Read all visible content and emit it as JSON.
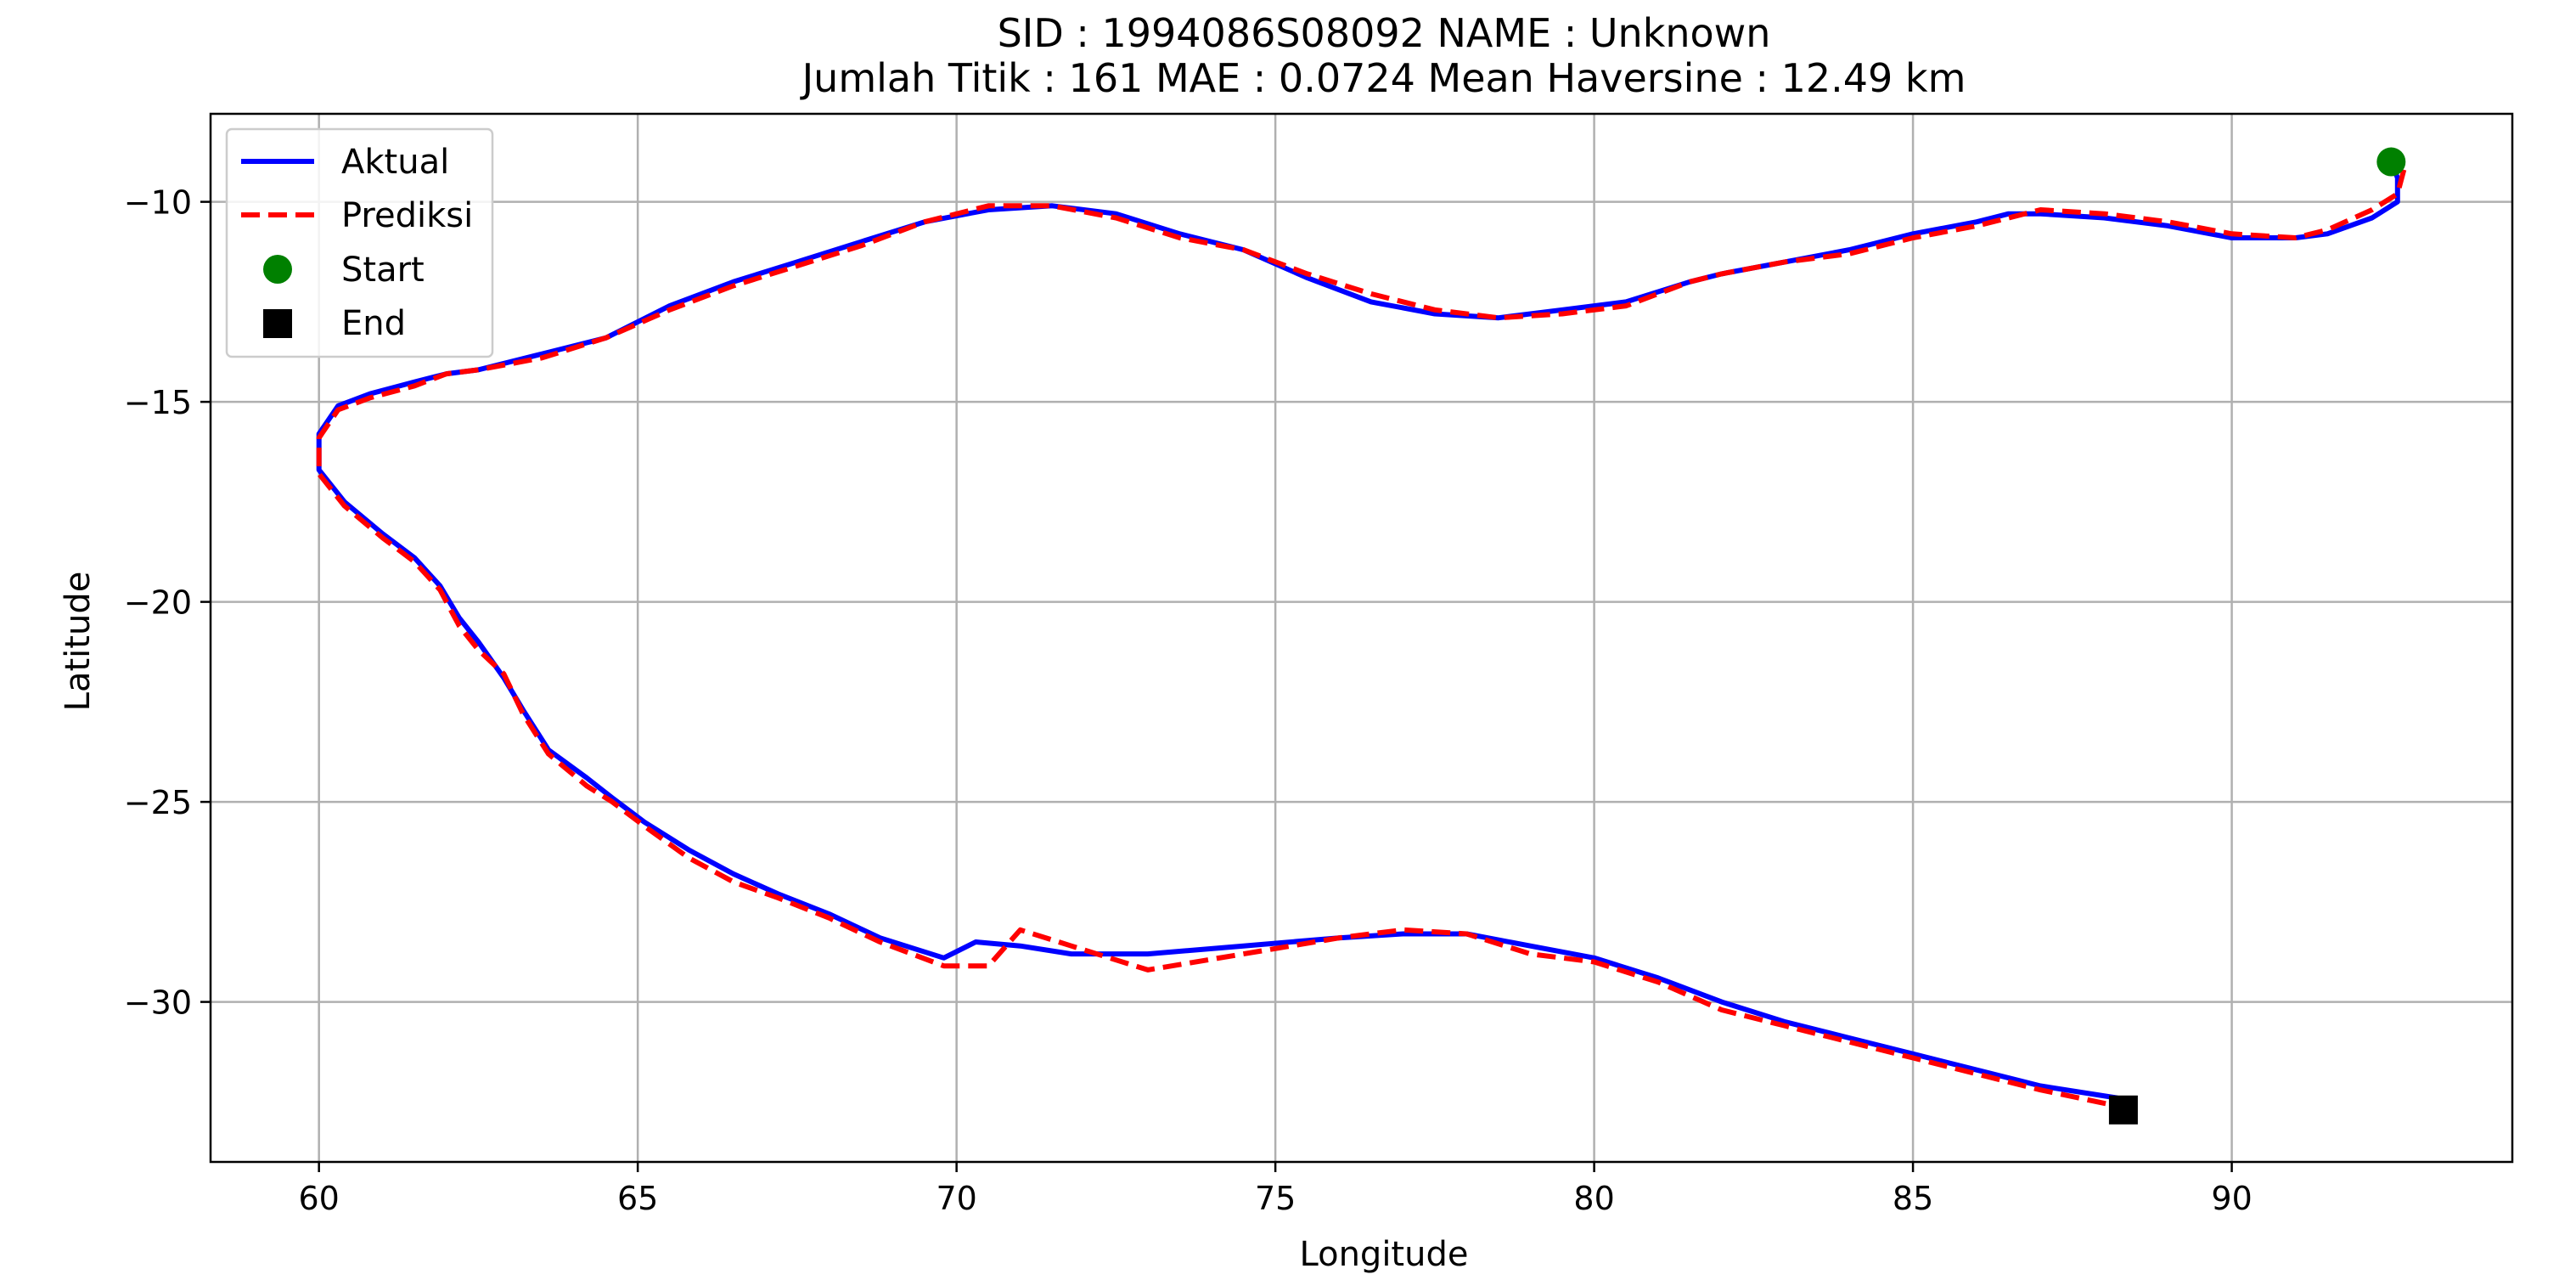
{
  "chart_data": {
    "type": "line",
    "title_line1": "SID : 1994086S08092    NAME : Unknown",
    "title_line2": "Jumlah Titik : 161    MAE : 0.0724    Mean Haversine : 12.49 km",
    "xlabel": "Longitude",
    "ylabel": "Latitude",
    "xlim": [
      58.3,
      94.4
    ],
    "ylim": [
      -34.0,
      -7.8
    ],
    "xticks": [
      60,
      65,
      70,
      75,
      80,
      85,
      90
    ],
    "yticks": [
      -10,
      -15,
      -20,
      -25,
      -30
    ],
    "xtick_labels": [
      "60",
      "65",
      "70",
      "75",
      "80",
      "85",
      "90"
    ],
    "ytick_labels": [
      "−10",
      "−15",
      "−20",
      "−25",
      "−30"
    ],
    "grid": true,
    "legend_position": "top-left",
    "series": [
      {
        "name": "Aktual",
        "color": "#0000ff",
        "style": "solid",
        "points": [
          [
            92.5,
            -9.0
          ],
          [
            92.6,
            -9.4
          ],
          [
            92.6,
            -10.0
          ],
          [
            92.2,
            -10.4
          ],
          [
            91.5,
            -10.8
          ],
          [
            91.0,
            -10.9
          ],
          [
            90.0,
            -10.9
          ],
          [
            89.0,
            -10.6
          ],
          [
            88.0,
            -10.4
          ],
          [
            87.0,
            -10.3
          ],
          [
            86.5,
            -10.3
          ],
          [
            86.0,
            -10.5
          ],
          [
            85.0,
            -10.8
          ],
          [
            84.0,
            -11.2
          ],
          [
            83.0,
            -11.5
          ],
          [
            82.0,
            -11.8
          ],
          [
            81.5,
            -12.0
          ],
          [
            80.5,
            -12.5
          ],
          [
            79.5,
            -12.7
          ],
          [
            78.5,
            -12.9
          ],
          [
            77.5,
            -12.8
          ],
          [
            76.5,
            -12.5
          ],
          [
            75.5,
            -11.9
          ],
          [
            74.5,
            -11.2
          ],
          [
            73.5,
            -10.8
          ],
          [
            72.5,
            -10.3
          ],
          [
            71.5,
            -10.1
          ],
          [
            70.5,
            -10.2
          ],
          [
            69.5,
            -10.5
          ],
          [
            68.5,
            -11.0
          ],
          [
            67.5,
            -11.5
          ],
          [
            66.5,
            -12.0
          ],
          [
            65.5,
            -12.6
          ],
          [
            64.5,
            -13.4
          ],
          [
            63.5,
            -13.8
          ],
          [
            62.5,
            -14.2
          ],
          [
            62.0,
            -14.3
          ],
          [
            61.5,
            -14.5
          ],
          [
            60.8,
            -14.8
          ],
          [
            60.3,
            -15.1
          ],
          [
            60.0,
            -15.8
          ],
          [
            60.0,
            -16.7
          ],
          [
            60.4,
            -17.5
          ],
          [
            61.0,
            -18.3
          ],
          [
            61.5,
            -18.9
          ],
          [
            61.9,
            -19.6
          ],
          [
            62.2,
            -20.4
          ],
          [
            62.5,
            -21.0
          ],
          [
            62.9,
            -21.9
          ],
          [
            63.2,
            -22.7
          ],
          [
            63.6,
            -23.7
          ],
          [
            64.2,
            -24.4
          ],
          [
            64.6,
            -24.9
          ],
          [
            65.1,
            -25.5
          ],
          [
            65.8,
            -26.2
          ],
          [
            66.5,
            -26.8
          ],
          [
            67.2,
            -27.3
          ],
          [
            68.0,
            -27.8
          ],
          [
            68.8,
            -28.4
          ],
          [
            69.8,
            -28.9
          ],
          [
            70.3,
            -28.5
          ],
          [
            71.0,
            -28.6
          ],
          [
            71.8,
            -28.8
          ],
          [
            73.0,
            -28.8
          ],
          [
            74.5,
            -28.6
          ],
          [
            76.0,
            -28.4
          ],
          [
            77.0,
            -28.3
          ],
          [
            78.0,
            -28.3
          ],
          [
            79.0,
            -28.6
          ],
          [
            80.0,
            -28.9
          ],
          [
            81.0,
            -29.4
          ],
          [
            82.0,
            -30.0
          ],
          [
            83.0,
            -30.5
          ],
          [
            84.0,
            -30.9
          ],
          [
            85.0,
            -31.3
          ],
          [
            86.0,
            -31.7
          ],
          [
            87.0,
            -32.1
          ],
          [
            88.2,
            -32.4
          ]
        ]
      },
      {
        "name": "Prediksi",
        "color": "#ff0000",
        "style": "dashed",
        "points": [
          [
            92.7,
            -9.2
          ],
          [
            92.6,
            -9.8
          ],
          [
            92.2,
            -10.2
          ],
          [
            91.5,
            -10.7
          ],
          [
            91.0,
            -10.9
          ],
          [
            90.0,
            -10.8
          ],
          [
            89.0,
            -10.5
          ],
          [
            88.0,
            -10.3
          ],
          [
            87.0,
            -10.2
          ],
          [
            86.5,
            -10.4
          ],
          [
            86.0,
            -10.6
          ],
          [
            85.0,
            -10.9
          ],
          [
            84.0,
            -11.3
          ],
          [
            83.0,
            -11.5
          ],
          [
            82.0,
            -11.8
          ],
          [
            81.5,
            -12.0
          ],
          [
            80.5,
            -12.6
          ],
          [
            79.5,
            -12.8
          ],
          [
            78.5,
            -12.9
          ],
          [
            77.5,
            -12.7
          ],
          [
            76.5,
            -12.3
          ],
          [
            75.5,
            -11.8
          ],
          [
            74.5,
            -11.2
          ],
          [
            73.5,
            -10.9
          ],
          [
            72.5,
            -10.4
          ],
          [
            71.5,
            -10.1
          ],
          [
            70.5,
            -10.1
          ],
          [
            69.5,
            -10.5
          ],
          [
            68.5,
            -11.1
          ],
          [
            67.5,
            -11.6
          ],
          [
            66.5,
            -12.1
          ],
          [
            65.5,
            -12.7
          ],
          [
            64.5,
            -13.4
          ],
          [
            63.5,
            -13.9
          ],
          [
            62.5,
            -14.2
          ],
          [
            62.0,
            -14.3
          ],
          [
            61.5,
            -14.6
          ],
          [
            60.8,
            -14.9
          ],
          [
            60.3,
            -15.2
          ],
          [
            60.0,
            -15.9
          ],
          [
            60.0,
            -16.8
          ],
          [
            60.4,
            -17.6
          ],
          [
            61.0,
            -18.4
          ],
          [
            61.5,
            -19.0
          ],
          [
            61.9,
            -19.7
          ],
          [
            62.2,
            -20.6
          ],
          [
            62.5,
            -21.2
          ],
          [
            62.9,
            -21.8
          ],
          [
            63.2,
            -22.8
          ],
          [
            63.6,
            -23.8
          ],
          [
            64.2,
            -24.6
          ],
          [
            64.6,
            -25.0
          ],
          [
            65.1,
            -25.6
          ],
          [
            65.8,
            -26.4
          ],
          [
            66.5,
            -27.0
          ],
          [
            67.2,
            -27.4
          ],
          [
            68.0,
            -27.9
          ],
          [
            68.8,
            -28.5
          ],
          [
            69.8,
            -29.1
          ],
          [
            70.5,
            -29.1
          ],
          [
            71.0,
            -28.2
          ],
          [
            71.8,
            -28.6
          ],
          [
            73.0,
            -29.2
          ],
          [
            74.5,
            -28.8
          ],
          [
            76.0,
            -28.4
          ],
          [
            77.0,
            -28.2
          ],
          [
            78.0,
            -28.3
          ],
          [
            79.0,
            -28.8
          ],
          [
            80.0,
            -29.0
          ],
          [
            81.0,
            -29.5
          ],
          [
            82.0,
            -30.2
          ],
          [
            83.0,
            -30.6
          ],
          [
            84.0,
            -31.0
          ],
          [
            85.0,
            -31.4
          ],
          [
            86.0,
            -31.8
          ],
          [
            87.0,
            -32.2
          ],
          [
            88.2,
            -32.6
          ]
        ]
      }
    ],
    "start": {
      "name": "Start",
      "color": "#008000",
      "marker": "circle",
      "point": [
        92.5,
        -9.0
      ]
    },
    "end": {
      "name": "End",
      "color": "#000000",
      "marker": "square",
      "point": [
        88.3,
        -32.7
      ]
    }
  }
}
